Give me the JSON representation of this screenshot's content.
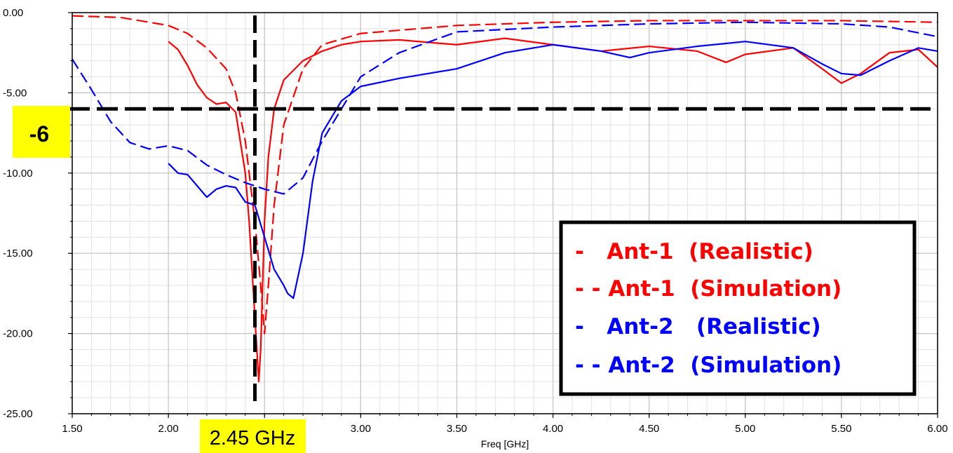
{
  "chart_data": {
    "type": "line",
    "xlabel": "Freq [GHz]",
    "ylabel": "",
    "xlim": [
      1.5,
      6.0
    ],
    "ylim": [
      -25,
      0
    ],
    "grid": true,
    "legend_position": "bottom-right",
    "x_ticks": [
      "1.50",
      "2.00",
      "2.50",
      "3.00",
      "3.50",
      "4.00",
      "4.50",
      "5.00",
      "5.50",
      "6.00"
    ],
    "y_ticks": [
      "0.00",
      "-5.00",
      "-10.00",
      "-15.00",
      "-20.00",
      "-25.00"
    ],
    "series": [
      {
        "name": "-   Ant-1  (Realistic)",
        "color": "#ff0000",
        "dash": "solid",
        "x": [
          2.0,
          2.05,
          2.1,
          2.15,
          2.2,
          2.25,
          2.3,
          2.35,
          2.4,
          2.42,
          2.44,
          2.46,
          2.47,
          2.48,
          2.49,
          2.5,
          2.52,
          2.55,
          2.6,
          2.7,
          2.8,
          2.9,
          3.0,
          3.2,
          3.5,
          3.75,
          4.0,
          4.25,
          4.5,
          4.75,
          4.9,
          5.0,
          5.25,
          5.4,
          5.5,
          5.6,
          5.75,
          5.9,
          6.0
        ],
        "y": [
          -1.8,
          -2.3,
          -3.3,
          -4.5,
          -5.3,
          -5.7,
          -5.6,
          -6.2,
          -10.0,
          -13.0,
          -17.0,
          -21.0,
          -23.0,
          -21.0,
          -17.0,
          -13.0,
          -9.0,
          -6.0,
          -4.2,
          -3.0,
          -2.4,
          -2.0,
          -1.8,
          -1.7,
          -2.0,
          -1.6,
          -2.0,
          -2.4,
          -2.1,
          -2.4,
          -3.1,
          -2.6,
          -2.2,
          -3.5,
          -4.4,
          -3.8,
          -2.5,
          -2.3,
          -3.4
        ]
      },
      {
        "name": "- - Ant-1  (Simulation)",
        "color": "#ff0000",
        "dash": "dashed",
        "x": [
          1.5,
          1.75,
          2.0,
          2.1,
          2.2,
          2.3,
          2.35,
          2.4,
          2.45,
          2.48,
          2.5,
          2.52,
          2.55,
          2.6,
          2.7,
          2.8,
          3.0,
          3.5,
          4.0,
          4.5,
          5.0,
          5.5,
          6.0
        ],
        "y": [
          -0.2,
          -0.3,
          -0.8,
          -1.3,
          -2.2,
          -3.5,
          -5.0,
          -8.0,
          -13.0,
          -17.0,
          -20.0,
          -17.0,
          -12.0,
          -7.0,
          -3.5,
          -2.0,
          -1.3,
          -0.8,
          -0.6,
          -0.5,
          -0.5,
          -0.5,
          -0.6
        ]
      },
      {
        "name": "-   Ant-2   (Realistic)",
        "color": "#0000ff",
        "dash": "solid",
        "x": [
          2.0,
          2.05,
          2.1,
          2.15,
          2.2,
          2.25,
          2.3,
          2.35,
          2.4,
          2.45,
          2.5,
          2.55,
          2.6,
          2.62,
          2.65,
          2.7,
          2.75,
          2.8,
          2.9,
          3.0,
          3.2,
          3.5,
          3.75,
          4.0,
          4.25,
          4.4,
          4.5,
          4.75,
          5.0,
          5.25,
          5.4,
          5.5,
          5.6,
          5.75,
          5.9,
          6.0
        ],
        "y": [
          -9.4,
          -10.0,
          -10.1,
          -10.8,
          -11.5,
          -11.0,
          -10.8,
          -10.9,
          -11.8,
          -12.0,
          -14.0,
          -16.0,
          -17.0,
          -17.5,
          -17.8,
          -15.0,
          -10.5,
          -7.5,
          -5.5,
          -4.6,
          -4.1,
          -3.5,
          -2.5,
          -2.0,
          -2.4,
          -2.8,
          -2.5,
          -2.1,
          -1.8,
          -2.2,
          -3.2,
          -3.8,
          -3.9,
          -3.0,
          -2.2,
          -2.4
        ]
      },
      {
        "name": "- - Ant-2  (Simulation)",
        "color": "#0000ff",
        "dash": "dashed",
        "x": [
          1.5,
          1.6,
          1.7,
          1.8,
          1.9,
          2.0,
          2.1,
          2.2,
          2.3,
          2.4,
          2.5,
          2.6,
          2.7,
          2.8,
          2.9,
          3.0,
          3.2,
          3.5,
          4.0,
          4.5,
          5.0,
          5.5,
          5.75,
          6.0
        ],
        "y": [
          -2.9,
          -4.8,
          -6.8,
          -8.1,
          -8.5,
          -8.3,
          -8.6,
          -9.5,
          -10.1,
          -10.6,
          -11.0,
          -11.3,
          -10.3,
          -8.0,
          -6.0,
          -4.0,
          -2.5,
          -1.2,
          -0.9,
          -0.7,
          -0.6,
          -0.7,
          -0.9,
          -1.5
        ]
      }
    ],
    "reference_lines": [
      {
        "orientation": "vertical",
        "value": 2.45,
        "label": "2.45 GHz"
      },
      {
        "orientation": "horizontal",
        "value": -6,
        "label": "-6"
      }
    ],
    "highlight_color": "#ffff00"
  }
}
